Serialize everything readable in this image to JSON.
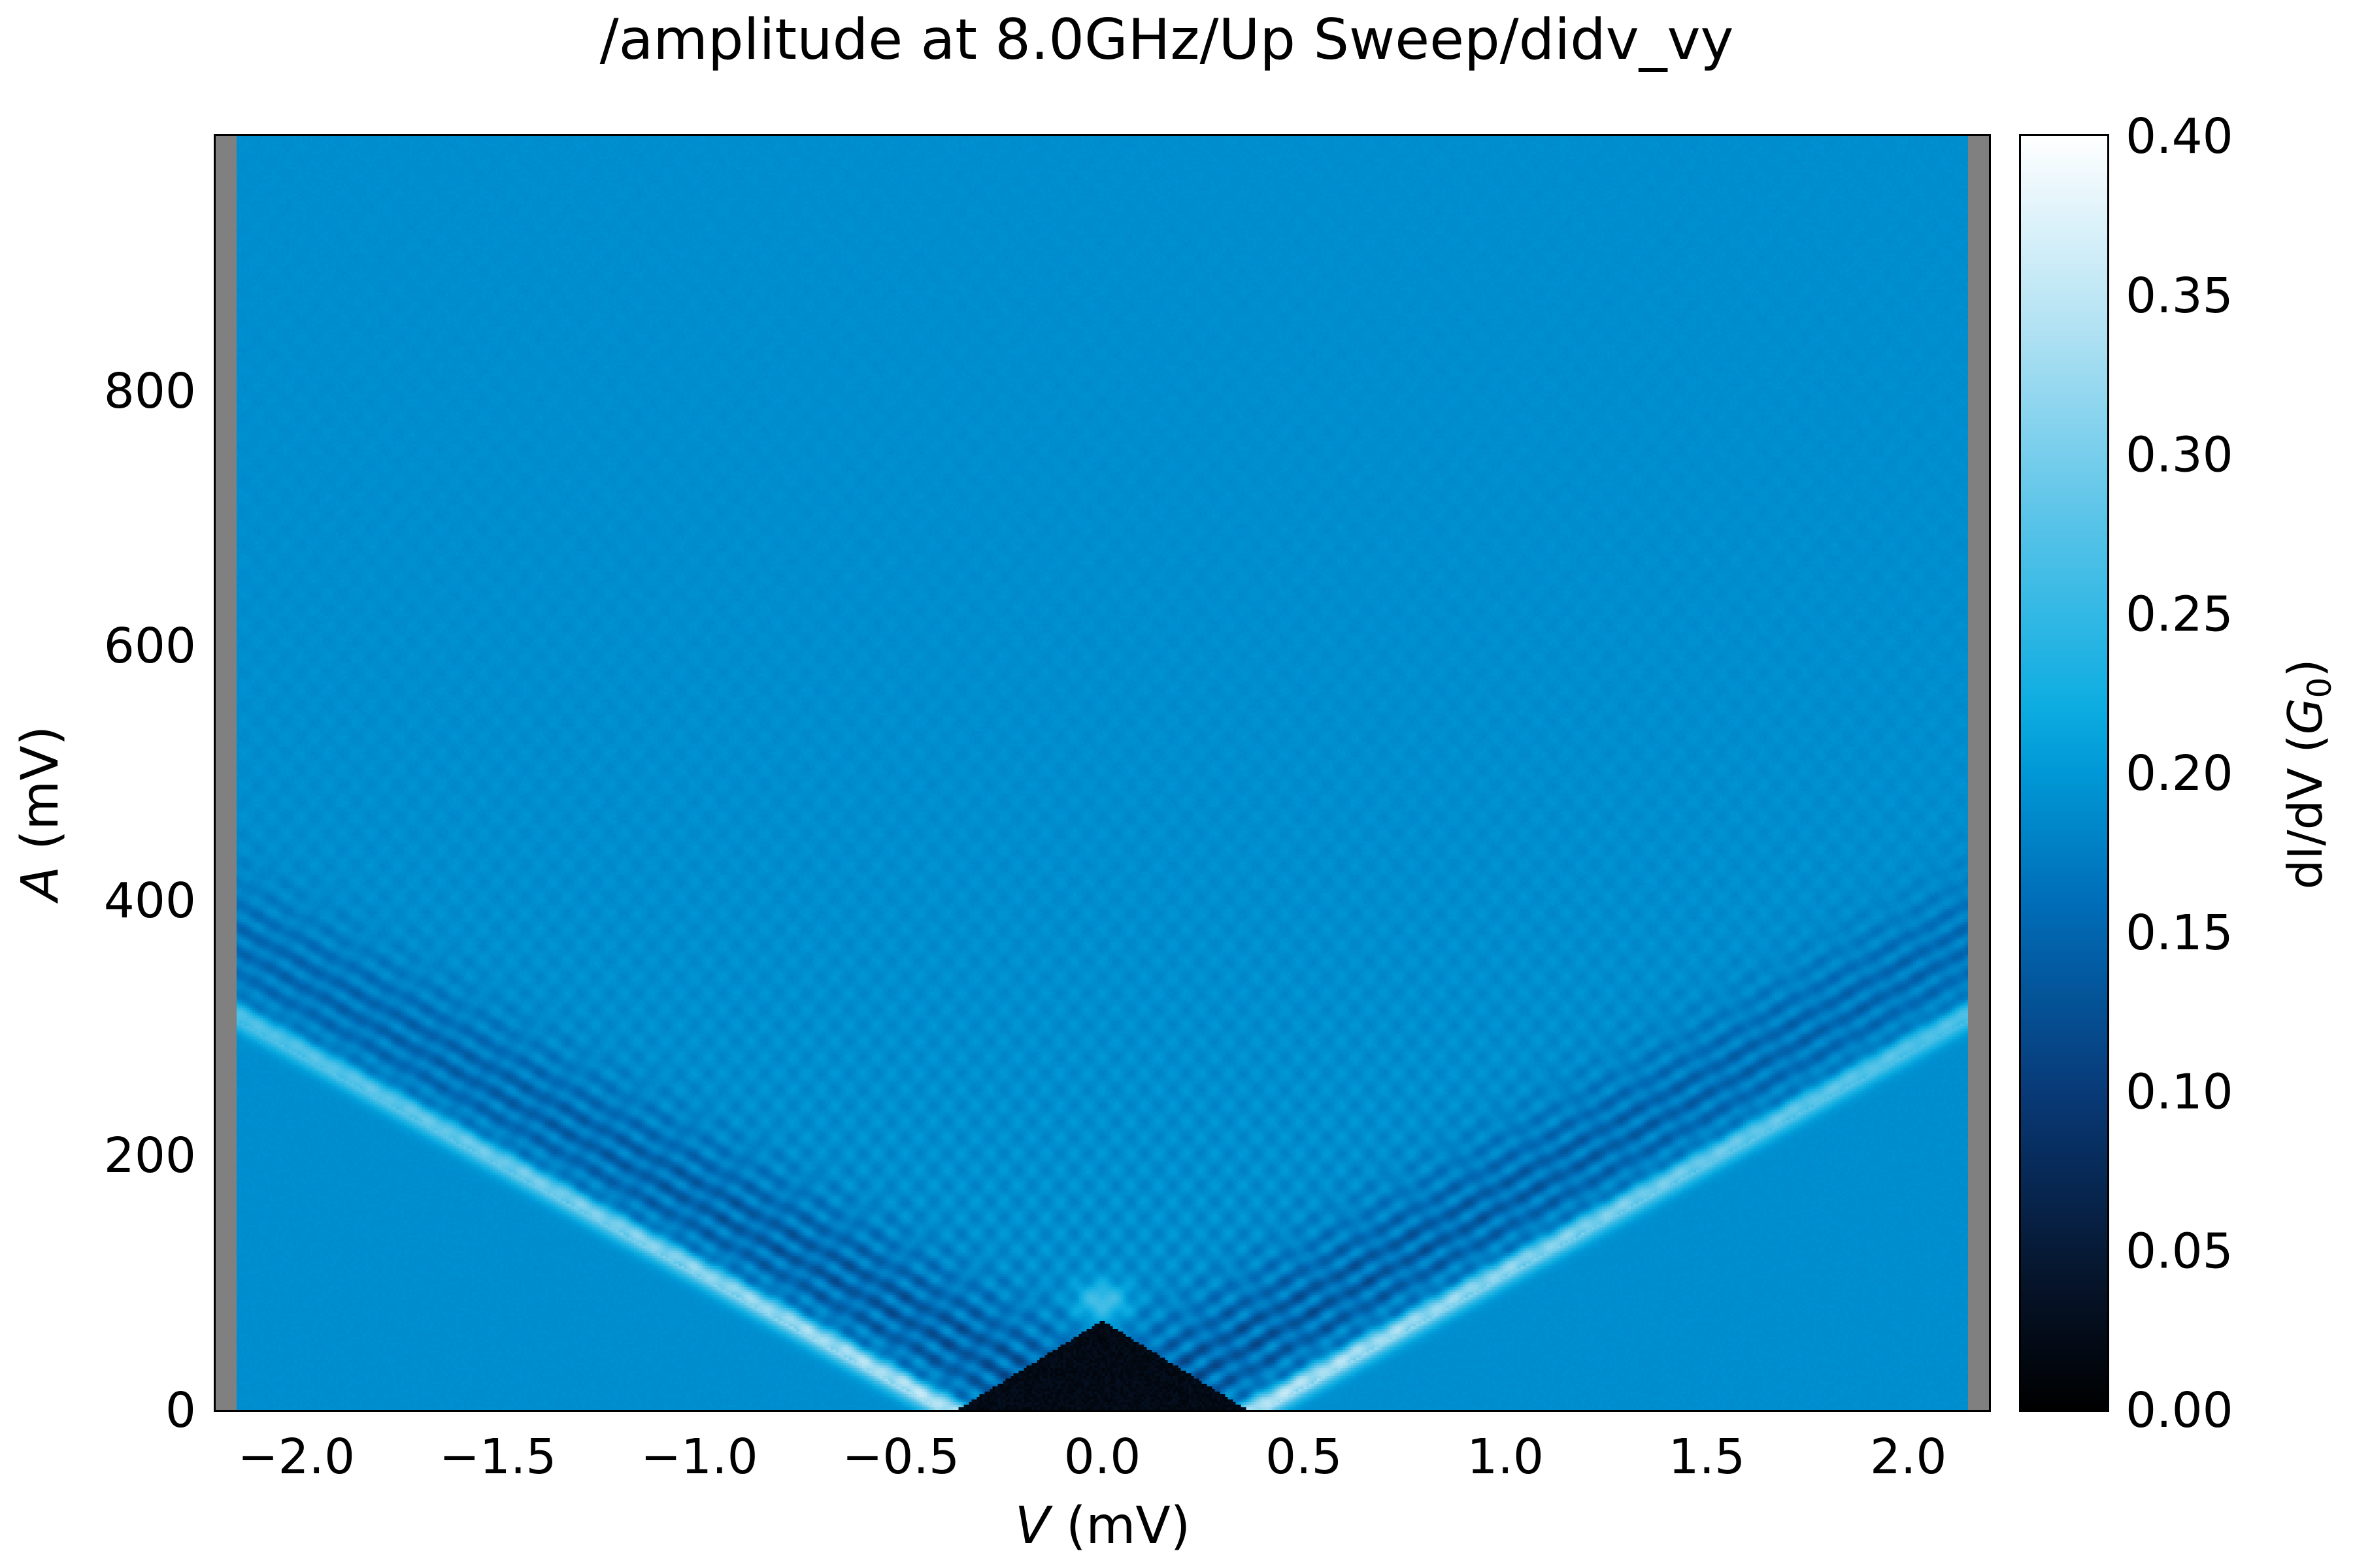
{
  "chart_data": {
    "type": "heatmap",
    "title": "/amplitude at 8.0GHz/Up Sweep/didv_vy",
    "xlabel_var": "V",
    "xlabel_unit": " (mV)",
    "ylabel_var": "A",
    "ylabel_unit": " (mV)",
    "colorbar_label_prefix": "dI/dV (",
    "colorbar_label_var": "G",
    "colorbar_label_sub": "0",
    "colorbar_label_suffix": ")",
    "colormap": "blue-sequential (black → dark blue → #00a8e0 → white)",
    "xlim": [
      -2.2,
      2.2
    ],
    "ylim": [
      0,
      1000
    ],
    "clim": [
      0.0,
      0.4
    ],
    "xticks": [
      -2.0,
      -1.5,
      -1.0,
      -0.5,
      0.0,
      0.5,
      1.0,
      1.5,
      2.0
    ],
    "xtick_labels": [
      "−2.0",
      "−1.5",
      "−1.0",
      "−0.5",
      "0.0",
      "0.5",
      "1.0",
      "1.5",
      "2.0"
    ],
    "yticks": [
      0,
      200,
      400,
      600,
      800
    ],
    "ytick_labels": [
      "0",
      "200",
      "400",
      "600",
      "800"
    ],
    "cticks": [
      0.0,
      0.05,
      0.1,
      0.15,
      0.2,
      0.25,
      0.3,
      0.35,
      0.4
    ],
    "ctick_labels": [
      "0.00",
      "0.05",
      "0.10",
      "0.15",
      "0.20",
      "0.25",
      "0.30",
      "0.35",
      "0.40"
    ],
    "nan_color": "#808080",
    "background_value": 0.19,
    "data_extent_v": [
      -2.15,
      2.15
    ],
    "gap_region": {
      "description": "superconducting gap (low dI/dV)",
      "v_half_width_at_A0": 0.36,
      "apex_A": 70,
      "value": 0.0
    },
    "features": [
      {
        "name": "bright edge branch",
        "v_at_A0": 0.4,
        "slope_mV_per_mV": 175,
        "value": 0.36
      },
      {
        "name": "dark oscillation band",
        "v_offset_range": [
          0.05,
          0.7
        ],
        "value": 0.12
      },
      {
        "name": "bright crossing point",
        "v": 0.0,
        "A": 85,
        "value": 0.27
      }
    ]
  }
}
